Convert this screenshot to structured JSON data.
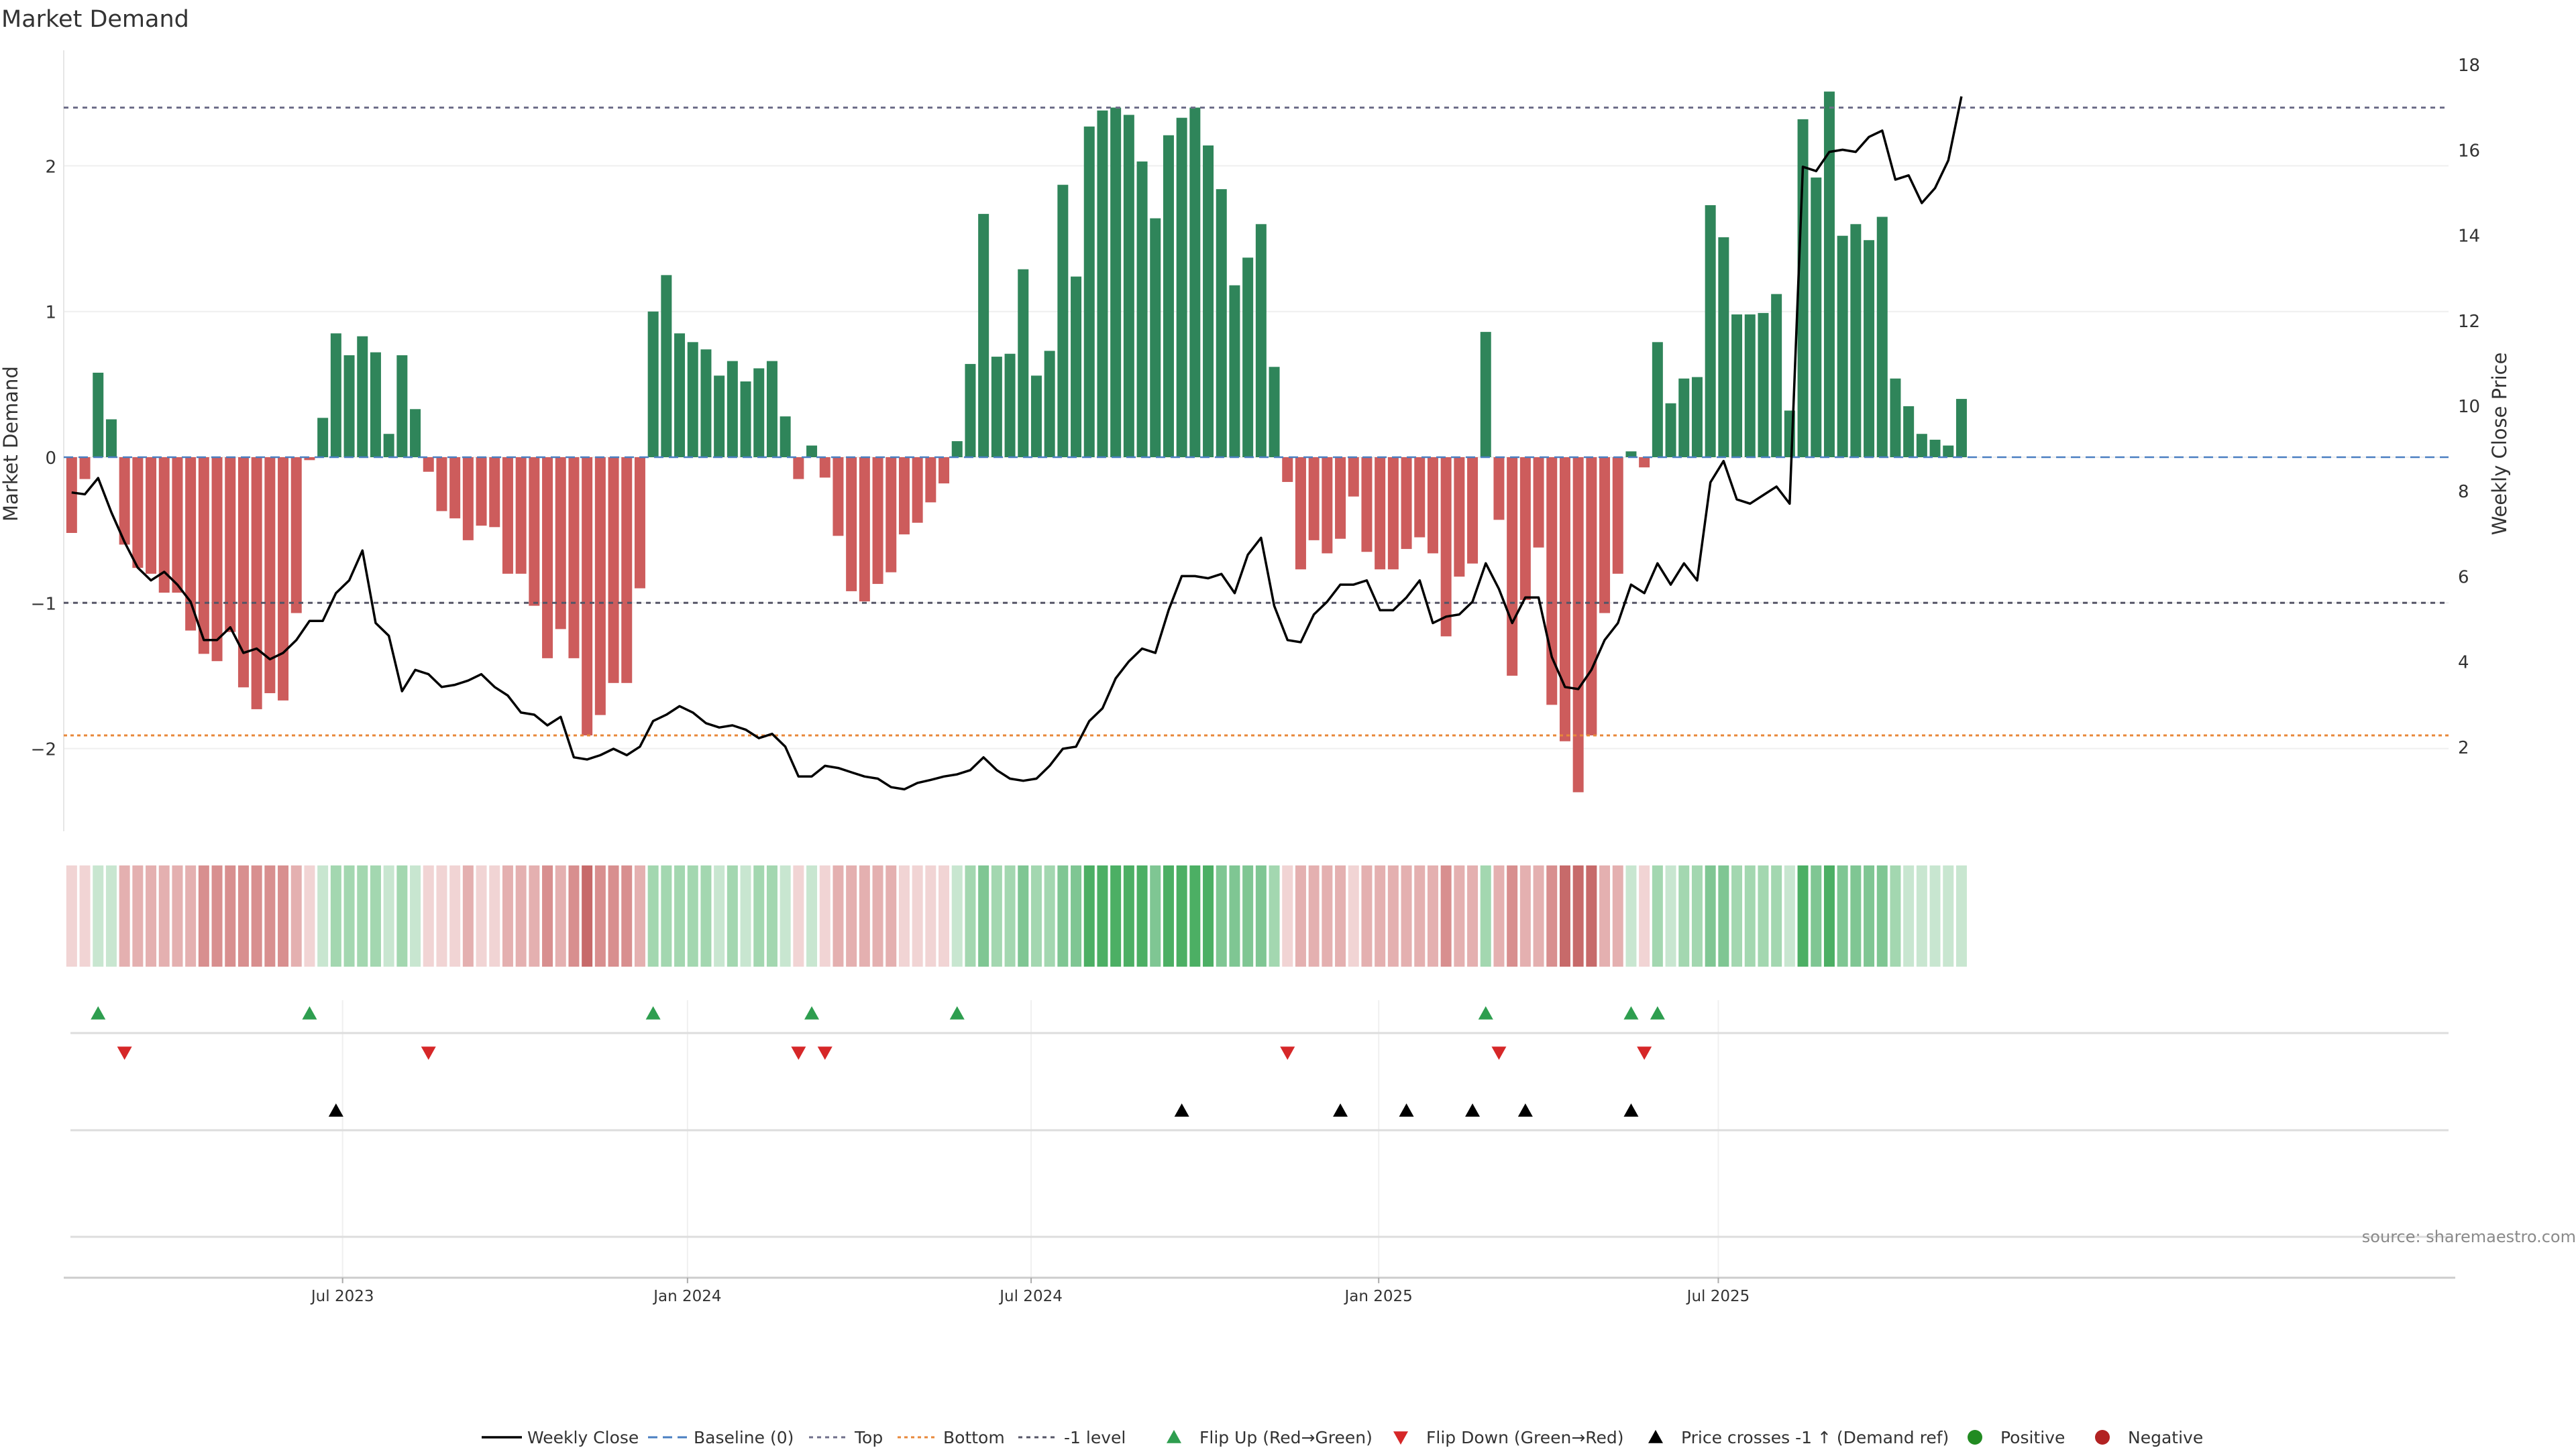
{
  "chart_data": {
    "type": "bar",
    "title": "Market Demand",
    "ylabel_left": "Market Demand",
    "ylabel_right": "Weekly Close Price",
    "ylim_left": [
      -2.6,
      2.85
    ],
    "ylim_right": [
      0.0,
      18.5
    ],
    "left_ticks": [
      -2,
      -1,
      0,
      1,
      2
    ],
    "left_tick_labels": [
      "−2",
      "−1",
      "0",
      "1",
      "2"
    ],
    "right_ticks": [
      2,
      4,
      6,
      8,
      10,
      12,
      14,
      16,
      18
    ],
    "x_ticks": [
      {
        "week": 21,
        "label": "Jul 2023"
      },
      {
        "week": 47.1,
        "label": "Jan 2024"
      },
      {
        "week": 73.1,
        "label": "Jul 2024"
      },
      {
        "week": 99.4,
        "label": "Jan 2025"
      },
      {
        "week": 125.1,
        "label": "Jul 2025"
      }
    ],
    "reference_lines": {
      "top": 2.4,
      "bottom": -1.91,
      "minus_one": -1.0,
      "baseline": 0
    },
    "demand": [
      -0.52,
      -0.15,
      0.58,
      0.26,
      -0.6,
      -0.76,
      -0.8,
      -0.93,
      -0.93,
      -1.19,
      -1.35,
      -1.4,
      -1.2,
      -1.58,
      -1.73,
      -1.62,
      -1.67,
      -1.07,
      -0.02,
      0.27,
      0.85,
      0.7,
      0.83,
      0.72,
      0.16,
      0.7,
      0.33,
      -0.1,
      -0.37,
      -0.42,
      -0.57,
      -0.47,
      -0.48,
      -0.8,
      -0.8,
      -1.02,
      -1.38,
      -1.18,
      -1.38,
      -1.91,
      -1.77,
      -1.55,
      -1.55,
      -0.9,
      1.0,
      1.25,
      0.85,
      0.79,
      0.74,
      0.56,
      0.66,
      0.52,
      0.61,
      0.66,
      0.28,
      -0.15,
      0.08,
      -0.14,
      -0.54,
      -0.92,
      -0.99,
      -0.87,
      -0.79,
      -0.53,
      -0.45,
      -0.31,
      -0.18,
      0.11,
      0.64,
      1.67,
      0.69,
      0.71,
      1.29,
      0.56,
      0.73,
      1.87,
      1.24,
      2.27,
      2.38,
      2.4,
      2.35,
      2.03,
      1.64,
      2.21,
      2.33,
      2.4,
      2.14,
      1.84,
      1.18,
      1.37,
      1.6,
      0.62,
      -0.17,
      -0.77,
      -0.57,
      -0.66,
      -0.56,
      -0.27,
      -0.65,
      -0.77,
      -0.77,
      -0.63,
      -0.55,
      -0.66,
      -1.23,
      -0.82,
      -0.73,
      0.86,
      -0.43,
      -1.5,
      -0.98,
      -0.62,
      -1.7,
      -1.95,
      -2.3,
      -1.91,
      -1.07,
      -0.8,
      0.04,
      -0.07,
      0.79,
      0.37,
      0.54,
      0.55,
      1.73,
      1.51,
      0.98,
      0.98,
      0.99,
      1.12,
      0.32,
      2.32,
      1.92,
      2.51,
      1.52,
      1.6,
      1.49,
      1.65,
      0.54,
      0.35,
      0.16,
      0.12,
      0.08,
      0.4
    ],
    "shade": [
      1,
      1,
      1,
      1,
      2,
      2,
      2,
      2,
      2,
      2,
      3,
      3,
      3,
      3,
      3,
      3,
      3,
      2,
      1,
      1,
      2,
      2,
      2,
      2,
      1,
      2,
      1,
      1,
      1,
      1,
      2,
      1,
      1,
      2,
      2,
      2,
      3,
      2,
      3,
      4,
      3,
      3,
      3,
      2,
      2,
      2,
      2,
      2,
      2,
      1,
      2,
      1,
      2,
      2,
      1,
      1,
      1,
      1,
      2,
      2,
      2,
      2,
      2,
      1,
      1,
      1,
      1,
      1,
      2,
      3,
      2,
      2,
      3,
      2,
      2,
      3,
      3,
      4,
      4,
      4,
      4,
      4,
      3,
      4,
      4,
      4,
      4,
      3,
      3,
      3,
      3,
      2,
      1,
      2,
      2,
      2,
      2,
      1,
      2,
      2,
      2,
      2,
      2,
      2,
      3,
      2,
      2,
      2,
      2,
      3,
      2,
      2,
      3,
      4,
      4,
      4,
      2,
      2,
      1,
      1,
      2,
      1,
      2,
      2,
      3,
      3,
      2,
      2,
      2,
      2,
      1,
      4,
      3,
      4,
      3,
      3,
      3,
      3,
      2,
      1,
      1,
      1,
      1,
      1
    ],
    "price": [
      7.96,
      7.92,
      8.3,
      7.5,
      6.8,
      6.2,
      5.9,
      6.1,
      5.8,
      5.4,
      4.5,
      4.5,
      4.8,
      4.2,
      4.3,
      4.05,
      4.2,
      4.5,
      4.95,
      4.95,
      5.6,
      5.9,
      6.6,
      4.9,
      4.6,
      3.3,
      3.8,
      3.7,
      3.4,
      3.45,
      3.55,
      3.7,
      3.4,
      3.2,
      2.8,
      2.75,
      2.5,
      2.7,
      1.75,
      1.7,
      1.8,
      1.95,
      1.8,
      2.0,
      2.6,
      2.75,
      2.95,
      2.8,
      2.55,
      2.45,
      2.5,
      2.4,
      2.2,
      2.3,
      2.0,
      1.3,
      1.3,
      1.55,
      1.5,
      1.4,
      1.3,
      1.25,
      1.05,
      1.0,
      1.15,
      1.22,
      1.3,
      1.35,
      1.45,
      1.75,
      1.45,
      1.25,
      1.2,
      1.25,
      1.55,
      1.95,
      2.0,
      2.6,
      2.9,
      3.6,
      4.0,
      4.3,
      4.2,
      5.2,
      6.0,
      6.0,
      5.95,
      6.05,
      5.6,
      6.5,
      6.9,
      5.3,
      4.5,
      4.45,
      5.1,
      5.4,
      5.8,
      5.8,
      5.9,
      5.2,
      5.2,
      5.5,
      5.9,
      4.9,
      5.05,
      5.1,
      5.4,
      6.3,
      5.7,
      4.9,
      5.5,
      5.5,
      4.1,
      3.4,
      3.35,
      3.8,
      4.5,
      4.9,
      5.8,
      5.6,
      6.3,
      5.8,
      6.3,
      5.9,
      8.2,
      8.7,
      7.8,
      7.7,
      7.9,
      8.1,
      7.7,
      15.6,
      15.5,
      15.95,
      16.0,
      15.95,
      16.3,
      16.45,
      15.3,
      15.4,
      14.75,
      15.1,
      15.75,
      17.25
    ],
    "flip_up_weeks": [
      2,
      18,
      44,
      56,
      67,
      107,
      118,
      120
    ],
    "flip_down_weeks": [
      4,
      27,
      55,
      57,
      92,
      108,
      119
    ],
    "price_cross_weeks": [
      20,
      84,
      96,
      101,
      106,
      110,
      118
    ],
    "legend": [
      {
        "key": "weekly_close",
        "label": "Weekly Close"
      },
      {
        "key": "baseline",
        "label": "Baseline (0)"
      },
      {
        "key": "top",
        "label": "Top"
      },
      {
        "key": "bottom",
        "label": "Bottom"
      },
      {
        "key": "minus_one",
        "label": "-1 level"
      },
      {
        "key": "flip_up",
        "label": "Flip Up (Red→Green)"
      },
      {
        "key": "flip_down",
        "label": "Flip Down (Green→Red)"
      },
      {
        "key": "price_cross",
        "label": "Price crosses -1 ↑ (Demand ref)"
      },
      {
        "key": "positive",
        "label": "Positive"
      },
      {
        "key": "negative",
        "label": "Negative"
      }
    ],
    "source": "source: sharemaestro.com"
  },
  "colors": {
    "green_bar": "#2f855a",
    "red_bar": "#cd5c5c",
    "green_shades": [
      "#c8e6d0",
      "#a3d7b0",
      "#7fc693",
      "#4caf64"
    ],
    "red_shades": [
      "#f1d4d4",
      "#e4b0b0",
      "#d88f8f",
      "#c76a6a"
    ],
    "flip_up": "#2e9e4f",
    "flip_down": "#d62728",
    "price_line": "#000000",
    "baseline": "#4a7fc1",
    "top_line": "#6f6f8a",
    "bottom_line": "#e8883a",
    "minus_one_line": "#555566",
    "positive_dot": "#228b22",
    "negative_dot": "#b22222"
  }
}
